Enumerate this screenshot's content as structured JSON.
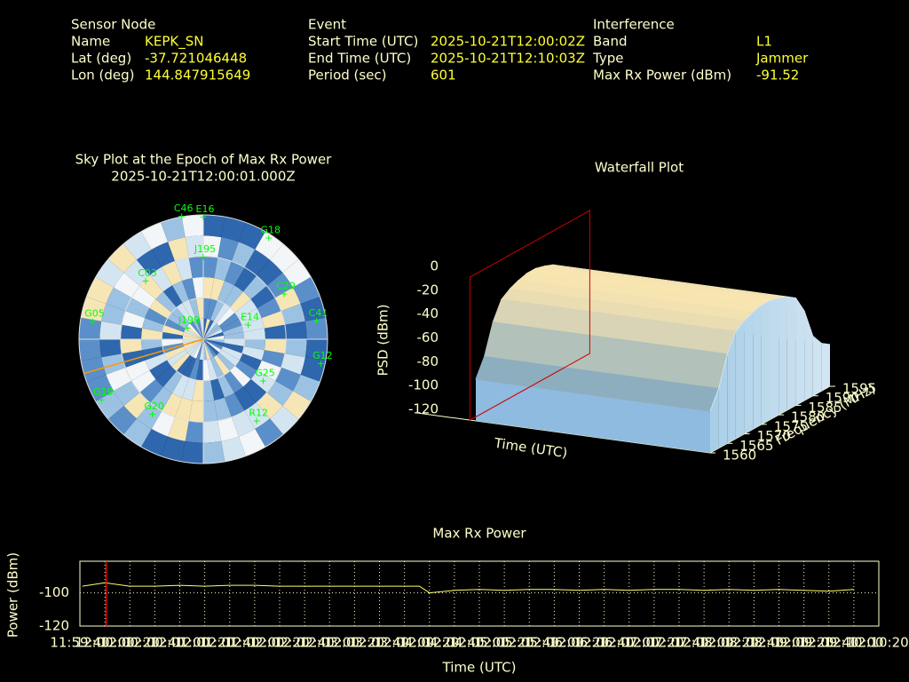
{
  "header": {
    "sensor": {
      "title": "Sensor Node",
      "rows": [
        [
          "Name",
          "KEPK_SN"
        ],
        [
          "Lat (deg)",
          "-37.721046448"
        ],
        [
          "Lon (deg)",
          "144.847915649"
        ]
      ]
    },
    "event": {
      "title": "Event",
      "rows": [
        [
          "Start Time (UTC)",
          "2025-10-21T12:00:02Z"
        ],
        [
          "End Time (UTC)",
          "2025-10-21T12:10:03Z"
        ],
        [
          "Period (sec)",
          "601"
        ]
      ]
    },
    "interference": {
      "title": "Interference",
      "rows": [
        [
          "Band",
          "L1"
        ],
        [
          "Type",
          "Jammer"
        ],
        [
          "Max Rx Power (dBm)",
          "-91.52"
        ]
      ]
    }
  },
  "chart_data": [
    {
      "type": "polar",
      "title": "Sky Plot at the Epoch of Max Rx Power",
      "subtitle": "2025-10-21T12:00:01.000Z",
      "satellites": [
        "E16",
        "C46",
        "G18",
        "C41",
        "G12",
        "R12",
        "G19",
        "G05",
        "C03",
        "J199",
        "E14",
        "C29",
        "G25",
        "J195",
        "G20"
      ],
      "azimuth": [
        0,
        350,
        33,
        81,
        102,
        147,
        239,
        279,
        315,
        304,
        73,
        61,
        125,
        0,
        214
      ],
      "elevation": [
        2,
        0,
        3,
        7,
        3,
        19,
        4,
        9,
        31,
        76,
        56,
        23,
        37,
        31,
        24
      ],
      "jammer_azimuth": 254,
      "color": "#00ff00"
    },
    {
      "type": "surface3d",
      "title": "Waterfall Plot",
      "xlabel": "Time (UTC)",
      "ylabel": "Frequency (MHz)",
      "zlabel": "PSD (dBm)",
      "frequency": [
        1560,
        1562.5,
        1565,
        1567.5,
        1570,
        1572.5,
        1575,
        1577.5,
        1580,
        1582.5,
        1585,
        1587.5,
        1590,
        1592.5,
        1595
      ],
      "values": [
        -85,
        -70,
        -45,
        -30,
        -25,
        -22,
        -20,
        -20,
        -22,
        -25,
        -30,
        -45,
        -70,
        -80,
        -85
      ],
      "ylim": [
        1560,
        1595
      ],
      "yticks": [
        1560,
        1565,
        1570,
        1575,
        1580,
        1585,
        1590,
        1595
      ],
      "zlim": [
        -120,
        0
      ],
      "zticks": [
        -120,
        -100,
        -80,
        -60,
        -40,
        -20,
        0
      ]
    },
    {
      "type": "line",
      "title": "Max Rx Power",
      "xlabel": "Time (UTC)",
      "ylabel": "Power (dBm)",
      "xlim": [
        "11:59:40",
        "12:10:20"
      ],
      "xticks": [
        "11:59:40",
        "12:00:00",
        "12:00:20",
        "12:00:40",
        "12:01:00",
        "12:01:20",
        "12:01:40",
        "12:02:00",
        "12:02:20",
        "12:02:40",
        "12:03:00",
        "12:03:20",
        "12:03:40",
        "12:04:00",
        "12:04:20",
        "12:04:40",
        "12:05:00",
        "12:05:20",
        "12:05:40",
        "12:06:00",
        "12:06:20",
        "12:06:40",
        "12:07:00",
        "12:07:20",
        "12:07:40",
        "12:08:00",
        "12:08:20",
        "12:08:40",
        "12:09:00",
        "12:09:20",
        "12:09:40",
        "12:10:00",
        "12:10:20"
      ],
      "x": [
        "11:59:42",
        "12:00:00",
        "12:00:20",
        "12:00:40",
        "12:01:00",
        "12:01:20",
        "12:01:40",
        "12:02:00",
        "12:02:20",
        "12:02:40",
        "12:03:00",
        "12:03:20",
        "12:03:40",
        "12:04:00",
        "12:04:12",
        "12:04:20",
        "12:04:40",
        "12:05:00",
        "12:05:20",
        "12:05:40",
        "12:06:00",
        "12:06:20",
        "12:06:40",
        "12:07:00",
        "12:07:20",
        "12:07:40",
        "12:08:00",
        "12:08:20",
        "12:08:40",
        "12:09:00",
        "12:09:20",
        "12:09:40",
        "12:10:00"
      ],
      "values": [
        -96,
        -94,
        -96,
        -96,
        -95.5,
        -96,
        -95.5,
        -95.5,
        -96,
        -96,
        -96,
        -96,
        -96,
        -96,
        -96,
        -100,
        -98.5,
        -98,
        -98.5,
        -98,
        -98,
        -98.5,
        -98,
        -98.5,
        -98,
        -98,
        -98.5,
        -98,
        -98.5,
        -98,
        -98.5,
        -99,
        -98
      ],
      "ylim": [
        -120,
        -81
      ],
      "yticks": [
        -120,
        -100
      ],
      "grid": true,
      "color": "#ffff66",
      "marker_x": "12:00:01",
      "marker_color": "#ff0000"
    }
  ]
}
